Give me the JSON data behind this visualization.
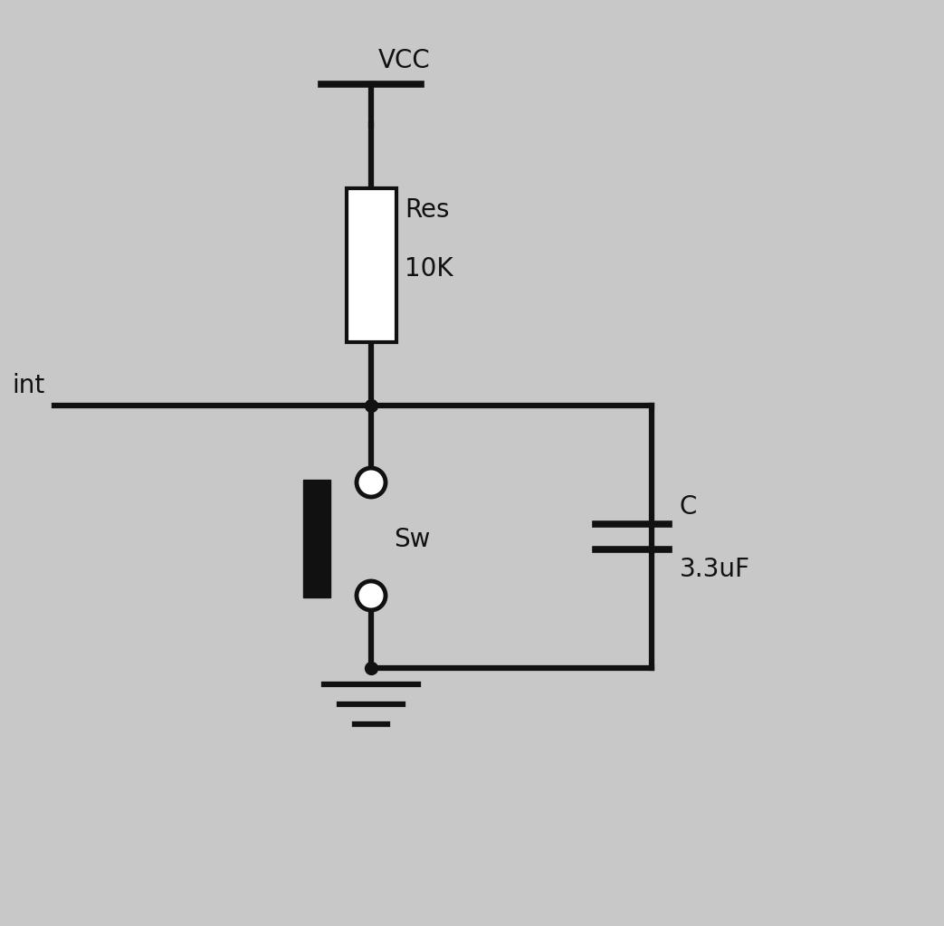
{
  "bg_color": "#c8c8c8",
  "line_color": "#111111",
  "line_width": 3.0,
  "lw_thick": 4.5,
  "fig_width": 10.43,
  "fig_height": 10.23,
  "vcc_label": "VCC",
  "res_label": "Res",
  "res_value": "10K",
  "sw_label": "Sw",
  "cap_label": "C",
  "cap_value": "3.3uF",
  "int_label": "int",
  "font_size": 20,
  "font_family": "DejaVu Sans"
}
